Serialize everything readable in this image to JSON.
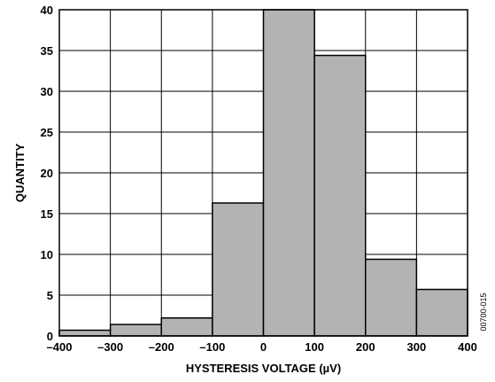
{
  "chart_data": {
    "type": "bar",
    "title": "",
    "xlabel": "HYSTERESIS VOLTAGE (µV)",
    "ylabel": "QUANTITY",
    "bin_edges": [
      -400,
      -300,
      -200,
      -100,
      0,
      100,
      200,
      300,
      400
    ],
    "values": [
      0.7,
      1.4,
      2.2,
      16.3,
      40,
      34.4,
      9.4,
      5.7
    ],
    "xlim": [
      -400,
      400
    ],
    "ylim": [
      0,
      40
    ],
    "x_ticks": [
      -400,
      -300,
      -200,
      -100,
      0,
      100,
      200,
      300,
      400
    ],
    "x_tick_labels": [
      "–400",
      "–300",
      "–200",
      "–100",
      "0",
      "100",
      "200",
      "300",
      "400"
    ],
    "y_ticks": [
      0,
      5,
      10,
      15,
      20,
      25,
      30,
      35,
      40
    ],
    "y_tick_labels": [
      "0",
      "5",
      "10",
      "15",
      "20",
      "25",
      "30",
      "35",
      "40"
    ],
    "grid": true,
    "bar_color": "#b3b3b3",
    "edge_color": "#000000"
  },
  "figure_id": "00700-015"
}
